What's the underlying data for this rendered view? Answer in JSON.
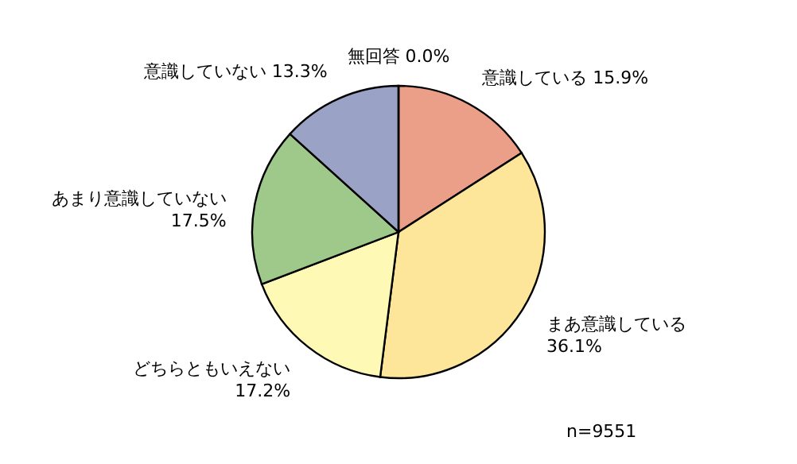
{
  "chart_data": {
    "type": "pie",
    "categories": [
      "意識している",
      "まあ意識している",
      "どちらともいえない",
      "あまり意識していない",
      "意識していない",
      "無回答"
    ],
    "values": [
      15.9,
      36.1,
      17.2,
      17.5,
      13.3,
      0.0
    ],
    "colors": [
      "#eb9e88",
      "#fde599",
      "#fefab6",
      "#9fc98b",
      "#9aa2c6",
      "#ffffff"
    ],
    "value_labels": [
      "15.9%",
      "36.1%",
      "17.2%",
      "17.5%",
      "13.3%",
      "0.0%"
    ],
    "annotations": [
      "n=9551"
    ]
  }
}
